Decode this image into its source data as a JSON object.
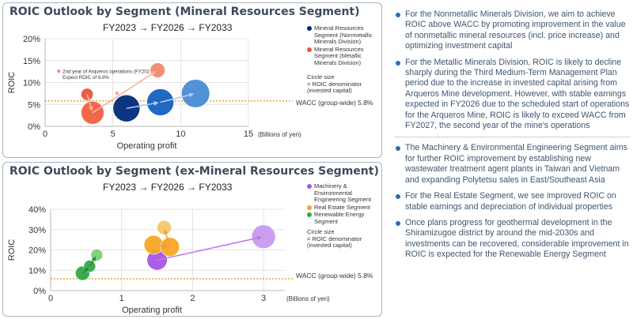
{
  "panels": {
    "top": {
      "title": "ROIC Outlook by Segment (Mineral Resources Segment)",
      "subtitle": "FY2023 → FY2026 → FY2033",
      "legend": [
        {
          "label": "Mineral Resources Segment (Nonmetallic Minerals Division)",
          "color": "#002a7a"
        },
        {
          "label": "Mineral Resources Segment (Metallic Minerals Division)",
          "color": "#e8563b"
        }
      ],
      "circle_note": "Circle size\n= ROIC denominator\n(invested capital)",
      "wacc_label": "WACC (group-wide)",
      "wacc_value": "5.8%",
      "annotation_line1": "2nd year of Arqueros operations (FY2027)",
      "annotation_line2": "Expect ROIC of 6.9%"
    },
    "bottom": {
      "title": "ROIC Outlook by Segment (ex-Mineral Resources Segment)",
      "subtitle": "FY2023 → FY2026 → FY2033",
      "legend": [
        {
          "label": "Machinery & Environmental Engineering Segment",
          "color": "#a855e8"
        },
        {
          "label": "Real Estate Segment",
          "color": "#f5a623"
        },
        {
          "label": "Renewable Energy Segment",
          "color": "#33a845"
        }
      ],
      "circle_note": "Circle size\n= ROIC denominator\n(invested capital)",
      "wacc_label": "WACC (group-wide)",
      "wacc_value": "5.8%"
    }
  },
  "chart_data": [
    {
      "type": "scatter",
      "title": "ROIC Outlook by Segment (Mineral Resources Segment)",
      "xlabel": "Operating profit",
      "ylabel": "ROIC",
      "xunit": "(Billions of yen)",
      "xlim": [
        0,
        15
      ],
      "ylim": [
        0,
        20
      ],
      "xticks": [
        "0",
        "5",
        "10",
        "15"
      ],
      "yticks": [
        "0%",
        "5%",
        "10%",
        "15%",
        "20%"
      ],
      "wacc": 5.8,
      "series": [
        {
          "name": "Mineral Resources Segment (Nonmetallic Minerals Division)",
          "color": "#002a7a",
          "points": [
            {
              "x": 6.0,
              "y": 4.1,
              "size": 1.0,
              "color": "#002a7a"
            },
            {
              "x": 8.5,
              "y": 5.5,
              "size": 1.0,
              "color": "#1560c0"
            },
            {
              "x": 11.1,
              "y": 7.5,
              "size": 1.05,
              "color": "#4a8bd6"
            }
          ]
        },
        {
          "name": "Mineral Resources Segment (Metallic Minerals Division)",
          "color": "#e8563b",
          "points": [
            {
              "x": 3.1,
              "y": 7.3,
              "size": 0.45,
              "color": "#e8563b"
            },
            {
              "x": 3.5,
              "y": 3.1,
              "size": 0.85,
              "color": "#f2603f"
            },
            {
              "x": 8.3,
              "y": 12.8,
              "size": 0.55,
              "color": "#f08a70"
            }
          ]
        }
      ]
    },
    {
      "type": "scatter",
      "title": "ROIC Outlook by Segment (ex-Mineral Resources Segment)",
      "xlabel": "Operating profit",
      "ylabel": "ROIC",
      "xunit": "(Billions of yen)",
      "xlim": [
        0,
        3.3
      ],
      "ylim": [
        0,
        40
      ],
      "xticks": [
        "0",
        "1",
        "2",
        "3"
      ],
      "yticks": [
        "0%",
        "10%",
        "20%",
        "30%",
        "40%"
      ],
      "wacc": 5.8,
      "series": [
        {
          "name": "Machinery & Environmental Engineering Segment",
          "color": "#a855e8",
          "points": [
            {
              "x": 1.5,
              "y": 15.0,
              "size": 0.85,
              "color": "#a855e8"
            },
            {
              "x": 3.0,
              "y": 26.5,
              "size": 1.0,
              "color": "#c79af0"
            }
          ]
        },
        {
          "name": "Real Estate Segment",
          "color": "#f5a623",
          "points": [
            {
              "x": 1.45,
              "y": 22.5,
              "size": 0.8,
              "color": "#f5a623"
            },
            {
              "x": 1.68,
              "y": 21.5,
              "size": 0.8,
              "color": "#f5a623"
            },
            {
              "x": 1.6,
              "y": 31.0,
              "size": 0.6,
              "color": "#f8c66a"
            }
          ]
        },
        {
          "name": "Renewable Energy Segment",
          "color": "#33a845",
          "points": [
            {
              "x": 0.45,
              "y": 8.5,
              "size": 0.6,
              "color": "#33a845"
            },
            {
              "x": 0.55,
              "y": 12.0,
              "size": 0.5,
              "color": "#33a845"
            },
            {
              "x": 0.65,
              "y": 17.5,
              "size": 0.5,
              "color": "#7cd07a"
            }
          ]
        }
      ]
    }
  ],
  "bullets_top": [
    "For the Nonmetallic Minerals Division, we aim to achieve ROIC above WACC by promoting improvement in the value of nonmetallic mineral resources (incl. price increase) and optimizing investment capital",
    "For the Metallic Minerals Division, ROIC is likely to decline sharply during the Third Medium-Term Management Plan period due to the increase in invested capital arising from Arqueros Mine development. However, with stable earnings expected in FY2026 due to the scheduled start of operations for the Arqueros Mine, ROIC is likely to exceed WACC from FY2027, the second year of the mine's operations"
  ],
  "bullets_bottom": [
    "The Machinery & Environmental Engineering Segment aims for further ROIC improvement by establishing new wastewater treatment agent plants in Taiwan and Vietnam and expanding Polytetsu sales in East/Southeast Asia",
    "For the Real Estate Segment, we see improved ROIC on stable earnings and depreciation of individual properties",
    "Once plans progress for geothermal development in the Shiramizugoe district by around the mid-2030s and investments can be recovered, considerable improvement in ROIC is expected for the Renewable Energy Segment"
  ]
}
